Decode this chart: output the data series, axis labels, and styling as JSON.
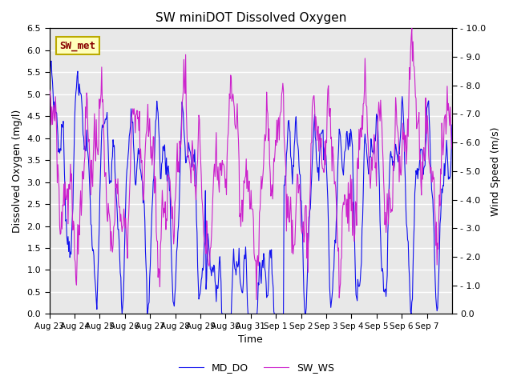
{
  "title": "SW miniDOT Dissolved Oxygen",
  "ylabel_left": "Dissolved Oxygen (mg/l)",
  "ylabel_right": "Wind Speed (m/s)",
  "xlabel": "Time",
  "ylim_left": [
    0.0,
    6.5
  ],
  "ylim_right": [
    0.0,
    10.0
  ],
  "yticks_left": [
    0.0,
    0.5,
    1.0,
    1.5,
    2.0,
    2.5,
    3.0,
    3.5,
    4.0,
    4.5,
    5.0,
    5.5,
    6.0,
    6.5
  ],
  "yticks_right": [
    0.0,
    1.0,
    2.0,
    3.0,
    4.0,
    5.0,
    6.0,
    7.0,
    8.0,
    9.0,
    10.0
  ],
  "color_MD_DO": "#1010ee",
  "color_SW_WS": "#cc22cc",
  "legend_labels": [
    "MD_DO",
    "SW_WS"
  ],
  "annotation_text": "SW_met",
  "annotation_color": "#880000",
  "annotation_bg": "#ffffbb",
  "annotation_border": "#bbaa00",
  "bg_color": "#e8e8e8",
  "grid_color": "#ffffff",
  "xtick_labels": [
    "Aug 23",
    "Aug 24",
    "Aug 25",
    "Aug 26",
    "Aug 27",
    "Aug 28",
    "Aug 29",
    "Aug 30",
    "Aug 31",
    "Sep 1",
    "Sep 2",
    "Sep 3",
    "Sep 4",
    "Sep 5",
    "Sep 6",
    "Sep 7"
  ],
  "n_points": 672,
  "figsize": [
    6.4,
    4.8
  ],
  "dpi": 100
}
